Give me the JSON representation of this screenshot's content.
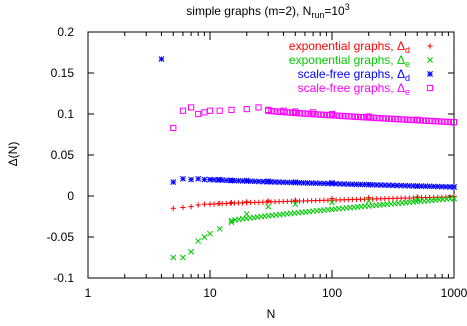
{
  "chart_data": {
    "type": "scatter",
    "title": {
      "main": "simple graphs (m=2), N",
      "sub": "run",
      "eq": "=10",
      "sup": "3"
    },
    "xlabel": "N",
    "ylabel": {
      "main": "Δ(N)"
    },
    "xscale": "log",
    "xlim": [
      1,
      1000
    ],
    "ylim": [
      -0.1,
      0.2
    ],
    "xticks": [
      {
        "v": 1,
        "label": "1"
      },
      {
        "v": 10,
        "label": "10"
      },
      {
        "v": 100,
        "label": "100"
      },
      {
        "v": 1000,
        "label": "1000"
      }
    ],
    "yticks": [
      {
        "v": -0.1,
        "label": "-0.1"
      },
      {
        "v": -0.05,
        "label": "-0.05"
      },
      {
        "v": 0,
        "label": "0"
      },
      {
        "v": 0.05,
        "label": "0.05"
      },
      {
        "v": 0.1,
        "label": "0.1"
      },
      {
        "v": 0.15,
        "label": "0.15"
      },
      {
        "v": 0.2,
        "label": "0.2"
      }
    ],
    "grid": false,
    "legend_position": "top-right",
    "series": [
      {
        "name": "exponential graphs, Δ",
        "sub": "d",
        "color": "#ff0000",
        "marker": "plus",
        "points": [
          [
            5,
            -0.015
          ],
          [
            6,
            -0.014
          ],
          [
            7,
            -0.013
          ],
          [
            8,
            -0.011
          ],
          [
            9,
            -0.01
          ],
          [
            10,
            -0.01
          ],
          [
            12,
            -0.009
          ],
          [
            15,
            -0.008
          ],
          [
            20,
            -0.007
          ],
          [
            30,
            -0.006
          ],
          [
            50,
            -0.005
          ],
          [
            100,
            -0.003
          ],
          [
            200,
            -0.002
          ],
          [
            500,
            -0.001
          ],
          [
            1000,
            -0.001
          ]
        ],
        "trend": {
          "start_y": -0.01,
          "end_y": -0.001,
          "start_x": 10,
          "end_x": 1000
        }
      },
      {
        "name": "exponential graphs, Δ",
        "sub": "e",
        "color": "#00cc00",
        "marker": "cross",
        "points": [
          [
            5,
            -0.075
          ],
          [
            6,
            -0.075
          ],
          [
            7,
            -0.068
          ],
          [
            8,
            -0.055
          ],
          [
            9,
            -0.05
          ],
          [
            10,
            -0.046
          ],
          [
            12,
            -0.04
          ],
          [
            15,
            -0.032
          ],
          [
            20,
            -0.022
          ],
          [
            30,
            -0.013
          ],
          [
            50,
            -0.01
          ],
          [
            100,
            -0.008
          ],
          [
            200,
            -0.006
          ],
          [
            500,
            -0.004
          ],
          [
            1000,
            -0.003
          ]
        ],
        "trend": {
          "start_y": -0.03,
          "end_y": -0.003,
          "start_x": 15,
          "end_x": 1000
        }
      },
      {
        "name": "scale-free graphs, Δ",
        "sub": "d",
        "color": "#0000ff",
        "marker": "star",
        "points": [
          [
            4,
            0.167
          ],
          [
            5,
            0.017
          ],
          [
            6,
            0.021
          ],
          [
            7,
            0.02
          ],
          [
            8,
            0.021
          ],
          [
            9,
            0.02
          ],
          [
            10,
            0.02
          ],
          [
            12,
            0.02
          ],
          [
            15,
            0.019
          ],
          [
            20,
            0.019
          ],
          [
            30,
            0.018
          ],
          [
            50,
            0.017
          ],
          [
            100,
            0.016
          ],
          [
            200,
            0.014
          ],
          [
            500,
            0.012
          ],
          [
            1000,
            0.011
          ]
        ],
        "trend": {
          "start_y": 0.02,
          "end_y": 0.011,
          "start_x": 10,
          "end_x": 1000
        }
      },
      {
        "name": "scale-free graphs, Δ",
        "sub": "e",
        "color": "#ff00ff",
        "marker": "square",
        "points": [
          [
            5,
            0.083
          ],
          [
            6,
            0.104
          ],
          [
            7,
            0.108
          ],
          [
            8,
            0.1
          ],
          [
            9,
            0.102
          ],
          [
            10,
            0.104
          ],
          [
            12,
            0.104
          ],
          [
            15,
            0.105
          ],
          [
            20,
            0.106
          ],
          [
            25,
            0.108
          ],
          [
            30,
            0.105
          ],
          [
            40,
            0.104
          ],
          [
            50,
            0.103
          ],
          [
            70,
            0.102
          ],
          [
            100,
            0.1
          ],
          [
            200,
            0.097
          ],
          [
            500,
            0.093
          ],
          [
            1000,
            0.09
          ]
        ],
        "trend": {
          "start_y": 0.104,
          "end_y": 0.09,
          "start_x": 30,
          "end_x": 1000
        }
      }
    ]
  }
}
